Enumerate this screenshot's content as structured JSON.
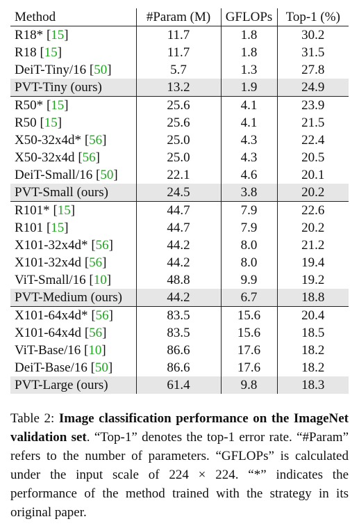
{
  "table": {
    "headers": [
      "Method",
      "#Param (M)",
      "GFLOPs",
      "Top-1 (%)"
    ],
    "groups": [
      [
        {
          "method": "R18*",
          "ref": "15",
          "suffix": "",
          "param": "11.7",
          "gflops": "1.8",
          "top1": "30.2"
        },
        {
          "method": "R18",
          "ref": "15",
          "suffix": "",
          "param": "11.7",
          "gflops": "1.8",
          "top1": "31.5"
        },
        {
          "method": "DeiT-Tiny/16",
          "ref": "50",
          "suffix": "",
          "param": "5.7",
          "gflops": "1.3",
          "top1": "27.8"
        },
        {
          "method": "PVT-Tiny (ours)",
          "ref": "",
          "suffix": "",
          "param": "13.2",
          "gflops": "1.9",
          "top1": "24.9",
          "ours": true
        }
      ],
      [
        {
          "method": "R50*",
          "ref": "15",
          "suffix": "",
          "param": "25.6",
          "gflops": "4.1",
          "top1": "23.9"
        },
        {
          "method": "R50",
          "ref": "15",
          "suffix": "",
          "param": "25.6",
          "gflops": "4.1",
          "top1": "21.5"
        },
        {
          "method": "X50-32x4d*",
          "ref": "56",
          "suffix": "",
          "param": "25.0",
          "gflops": "4.3",
          "top1": "22.4"
        },
        {
          "method": "X50-32x4d",
          "ref": "56",
          "suffix": "",
          "param": "25.0",
          "gflops": "4.3",
          "top1": "20.5"
        },
        {
          "method": "DeiT-Small/16",
          "ref": "50",
          "suffix": "",
          "param": "22.1",
          "gflops": "4.6",
          "top1": "20.1"
        },
        {
          "method": "PVT-Small (ours)",
          "ref": "",
          "suffix": "",
          "param": "24.5",
          "gflops": "3.8",
          "top1": "20.2",
          "ours": true
        }
      ],
      [
        {
          "method": "R101*",
          "ref": "15",
          "suffix": "",
          "param": "44.7",
          "gflops": "7.9",
          "top1": "22.6"
        },
        {
          "method": "R101",
          "ref": "15",
          "suffix": "",
          "param": "44.7",
          "gflops": "7.9",
          "top1": "20.2"
        },
        {
          "method": "X101-32x4d*",
          "ref": "56",
          "suffix": "",
          "param": "44.2",
          "gflops": "8.0",
          "top1": "21.2"
        },
        {
          "method": "X101-32x4d",
          "ref": "56",
          "suffix": "",
          "param": "44.2",
          "gflops": "8.0",
          "top1": "19.4"
        },
        {
          "method": "ViT-Small/16",
          "ref": "10",
          "suffix": "",
          "param": "48.8",
          "gflops": "9.9",
          "top1": "19.2"
        },
        {
          "method": "PVT-Medium (ours)",
          "ref": "",
          "suffix": "",
          "param": "44.2",
          "gflops": "6.7",
          "top1": "18.8",
          "ours": true
        }
      ],
      [
        {
          "method": "X101-64x4d*",
          "ref": "56",
          "suffix": "",
          "param": "83.5",
          "gflops": "15.6",
          "top1": "20.4"
        },
        {
          "method": "X101-64x4d",
          "ref": "56",
          "suffix": "",
          "param": "83.5",
          "gflops": "15.6",
          "top1": "18.5"
        },
        {
          "method": "ViT-Base/16",
          "ref": "10",
          "suffix": "",
          "param": "86.6",
          "gflops": "17.6",
          "top1": "18.2"
        },
        {
          "method": "DeiT-Base/16",
          "ref": "50",
          "suffix": "",
          "param": "86.6",
          "gflops": "17.6",
          "top1": "18.2"
        },
        {
          "method": "PVT-Large (ours)",
          "ref": "",
          "suffix": "",
          "param": "61.4",
          "gflops": "9.8",
          "top1": "18.3",
          "ours": true
        }
      ]
    ]
  },
  "caption": {
    "label": "Table 2:",
    "bold_title": "Image classification performance on the ImageNet validation set",
    "text": ". “Top-1” denotes the top-1 error rate. “#Param” refers to the number of parameters. “GFLOPs” is calculated under the input scale of 224 × 224. “*” indicates the performance of the method trained with the strategy in its original paper."
  }
}
